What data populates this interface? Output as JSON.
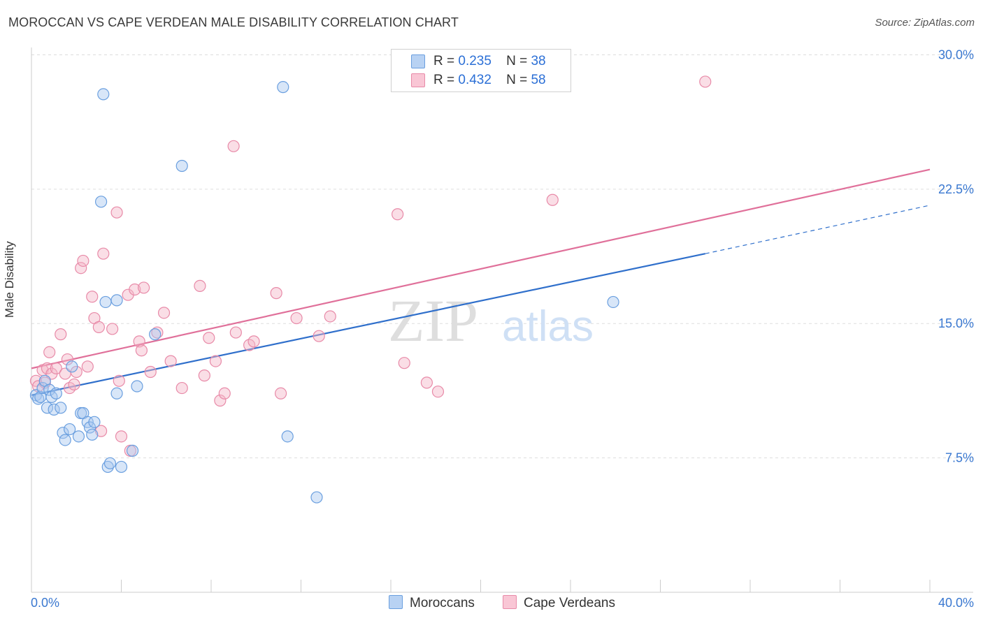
{
  "title": "MOROCCAN VS CAPE VERDEAN MALE DISABILITY CORRELATION CHART",
  "source": "Source: ZipAtlas.com",
  "watermark": {
    "zip": "ZIP",
    "atlas": "atlas"
  },
  "legend": {
    "rows": [
      {
        "r_label": "R =",
        "r_value": "0.235",
        "n_label": "N =",
        "n_value": "38"
      },
      {
        "r_label": "R =",
        "r_value": "0.432",
        "n_label": "N =",
        "n_value": "58"
      }
    ]
  },
  "bottom_legend": {
    "moroccans": "Moroccans",
    "cape_verdeans": "Cape Verdeans"
  },
  "colors": {
    "blue_fill": "#a9c8f0",
    "blue_stroke": "#6a9fdf",
    "blue_line": "#2f6fcb",
    "pink_fill": "#f5b5c8",
    "pink_stroke": "#e88aa8",
    "pink_line": "#e0709a",
    "tick_label": "#3a78d0",
    "grid": "#dddddd"
  },
  "chart_data": {
    "type": "scatter",
    "title": "MOROCCAN VS CAPE VERDEAN MALE DISABILITY CORRELATION CHART",
    "xlabel": "",
    "ylabel": "Male Disability",
    "xlim": [
      0,
      40
    ],
    "ylim": [
      0,
      31.5
    ],
    "x_tick_labels": [
      "0.0%",
      "40.0%"
    ],
    "y_ticks": [
      7.5,
      15.0,
      22.5,
      30.0
    ],
    "y_tick_labels": [
      "7.5%",
      "15.0%",
      "22.5%",
      "30.0%"
    ],
    "grid": true,
    "legend_position": "top-center",
    "series": [
      {
        "name": "Moroccans",
        "r": 0.235,
        "n": 38,
        "trend": {
          "x0": 0,
          "y0": 11.0,
          "x1": 30.0,
          "y1": 18.9,
          "dashed_to_x": 40.0,
          "dashed_to_y": 21.6
        },
        "points": [
          [
            0.2,
            11.0
          ],
          [
            0.3,
            10.8
          ],
          [
            0.4,
            10.9
          ],
          [
            0.5,
            11.4
          ],
          [
            0.6,
            11.8
          ],
          [
            0.7,
            10.3
          ],
          [
            0.8,
            11.3
          ],
          [
            0.9,
            10.9
          ],
          [
            1.0,
            10.2
          ],
          [
            1.1,
            11.1
          ],
          [
            1.3,
            10.3
          ],
          [
            1.4,
            8.9
          ],
          [
            1.5,
            8.5
          ],
          [
            1.7,
            9.1
          ],
          [
            1.8,
            12.6
          ],
          [
            2.1,
            8.7
          ],
          [
            2.2,
            10.0
          ],
          [
            2.3,
            10.0
          ],
          [
            2.5,
            9.5
          ],
          [
            2.6,
            9.2
          ],
          [
            2.7,
            8.8
          ],
          [
            2.8,
            9.5
          ],
          [
            3.1,
            21.8
          ],
          [
            3.2,
            27.8
          ],
          [
            3.3,
            16.2
          ],
          [
            3.4,
            7.0
          ],
          [
            3.5,
            7.2
          ],
          [
            3.8,
            16.3
          ],
          [
            3.8,
            11.1
          ],
          [
            4.0,
            7.0
          ],
          [
            4.5,
            7.9
          ],
          [
            4.7,
            11.5
          ],
          [
            5.5,
            14.4
          ],
          [
            6.7,
            23.8
          ],
          [
            11.2,
            28.2
          ],
          [
            11.4,
            8.7
          ],
          [
            12.7,
            5.3
          ],
          [
            25.9,
            16.2
          ]
        ]
      },
      {
        "name": "Cape Verdeans",
        "r": 0.432,
        "n": 58,
        "trend": {
          "x0": 0,
          "y0": 12.5,
          "x1": 40.0,
          "y1": 23.6
        },
        "points": [
          [
            0.2,
            11.8
          ],
          [
            0.3,
            11.5
          ],
          [
            0.5,
            12.4
          ],
          [
            0.6,
            11.7
          ],
          [
            0.7,
            12.5
          ],
          [
            0.8,
            13.4
          ],
          [
            0.9,
            12.2
          ],
          [
            1.1,
            12.5
          ],
          [
            1.3,
            14.4
          ],
          [
            1.5,
            12.2
          ],
          [
            1.6,
            13.0
          ],
          [
            1.7,
            11.4
          ],
          [
            1.9,
            11.6
          ],
          [
            2.0,
            12.3
          ],
          [
            2.2,
            18.1
          ],
          [
            2.3,
            18.5
          ],
          [
            2.5,
            12.6
          ],
          [
            2.7,
            16.5
          ],
          [
            2.8,
            15.3
          ],
          [
            3.0,
            14.8
          ],
          [
            3.2,
            18.9
          ],
          [
            3.1,
            9.0
          ],
          [
            3.6,
            14.7
          ],
          [
            3.8,
            21.2
          ],
          [
            3.9,
            11.8
          ],
          [
            4.0,
            8.7
          ],
          [
            4.3,
            16.6
          ],
          [
            4.4,
            7.9
          ],
          [
            4.6,
            16.9
          ],
          [
            4.8,
            14.0
          ],
          [
            4.9,
            13.5
          ],
          [
            5.0,
            17.0
          ],
          [
            5.3,
            12.3
          ],
          [
            5.6,
            14.5
          ],
          [
            5.9,
            15.6
          ],
          [
            6.2,
            12.9
          ],
          [
            6.7,
            11.4
          ],
          [
            7.5,
            17.1
          ],
          [
            7.7,
            12.1
          ],
          [
            7.9,
            14.2
          ],
          [
            8.2,
            12.9
          ],
          [
            8.4,
            10.7
          ],
          [
            8.6,
            11.1
          ],
          [
            9.0,
            24.9
          ],
          [
            9.1,
            14.5
          ],
          [
            9.7,
            13.8
          ],
          [
            9.9,
            14.0
          ],
          [
            10.9,
            16.7
          ],
          [
            11.1,
            11.1
          ],
          [
            11.8,
            15.3
          ],
          [
            12.8,
            14.3
          ],
          [
            13.3,
            15.4
          ],
          [
            16.3,
            21.1
          ],
          [
            16.6,
            12.8
          ],
          [
            17.6,
            11.7
          ],
          [
            18.1,
            11.2
          ],
          [
            23.2,
            21.9
          ],
          [
            30.0,
            28.5
          ]
        ]
      }
    ]
  }
}
